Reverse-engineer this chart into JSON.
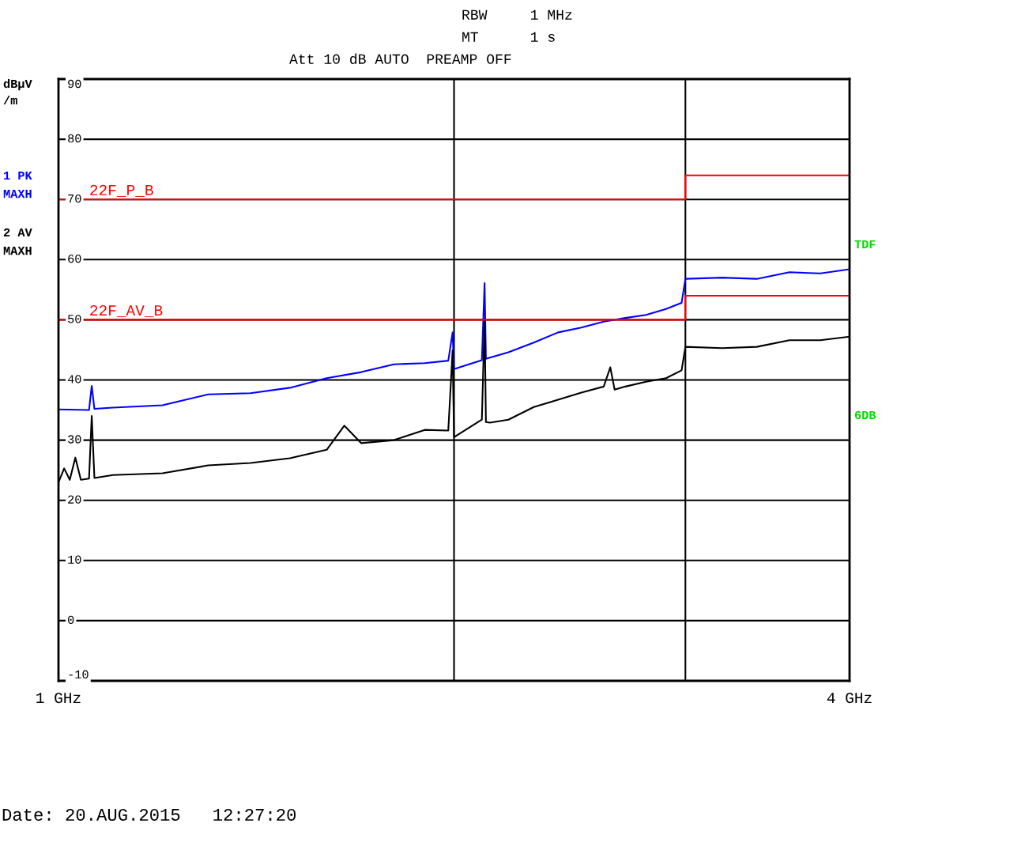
{
  "chart_data": {
    "type": "line",
    "ylabel": "dBµV\n/m",
    "log": "x",
    "grid": true,
    "legend": "left",
    "line_style": "solid",
    "marker": "none",
    "xlim": [
      1,
      4
    ],
    "xticks": [
      {
        "value": 1,
        "label": "1 GHz"
      },
      {
        "value": 2,
        "label": null
      },
      {
        "value": 3,
        "label": null
      },
      {
        "value": 4,
        "label": "4 GHz"
      }
    ],
    "ylim": [
      -10,
      90
    ],
    "yticks": [
      -10,
      0,
      10,
      20,
      30,
      40,
      50,
      60,
      70,
      80,
      90
    ],
    "series": [
      {
        "name": "1 PK\nMAXH",
        "color": "#0000ff",
        "x": [
          1.0,
          1.055,
          1.06,
          1.065,
          1.1,
          1.2,
          1.3,
          1.4,
          1.5,
          1.6,
          1.7,
          1.8,
          1.9,
          1.98,
          1.995,
          2.0,
          2.1,
          2.11,
          2.115,
          2.13,
          2.2,
          2.3,
          2.4,
          2.5,
          2.6,
          2.7,
          2.8,
          2.9,
          2.98,
          3.0,
          3.2,
          3.4,
          3.6,
          3.8,
          4.0
        ],
        "values": [
          35.1,
          35.0,
          39.0,
          35.2,
          35.4,
          35.8,
          37.6,
          37.8,
          38.7,
          40.3,
          41.3,
          42.6,
          42.8,
          43.2,
          47.9,
          41.8,
          43.3,
          56.1,
          43.5,
          43.7,
          44.6,
          46.2,
          47.9,
          48.7,
          49.7,
          50.3,
          50.8,
          51.8,
          52.8,
          56.8,
          57.0,
          56.8,
          57.9,
          57.7,
          58.4
        ]
      },
      {
        "name": "2 AV\nMAXH",
        "color": "#000000",
        "x": [
          1.0,
          1.01,
          1.02,
          1.03,
          1.04,
          1.055,
          1.06,
          1.065,
          1.1,
          1.2,
          1.3,
          1.4,
          1.5,
          1.6,
          1.65,
          1.7,
          1.8,
          1.9,
          1.98,
          1.995,
          2.0,
          2.1,
          2.11,
          2.115,
          2.13,
          2.2,
          2.3,
          2.4,
          2.5,
          2.6,
          2.63,
          2.65,
          2.7,
          2.8,
          2.9,
          2.98,
          3.0,
          3.2,
          3.4,
          3.6,
          3.8,
          4.0
        ],
        "values": [
          23.0,
          25.3,
          23.4,
          27.1,
          23.4,
          23.6,
          34.0,
          23.7,
          24.2,
          24.5,
          25.8,
          26.2,
          27.0,
          28.4,
          32.4,
          29.5,
          30.0,
          31.7,
          31.6,
          44.9,
          30.5,
          33.4,
          50.1,
          33.0,
          32.9,
          33.4,
          35.5,
          36.7,
          37.9,
          38.9,
          42.1,
          38.4,
          38.9,
          39.7,
          40.3,
          41.6,
          45.5,
          45.3,
          45.5,
          46.6,
          46.6,
          47.2
        ]
      },
      {
        "name": "22F_P_B",
        "type": "step",
        "color": "#ff0000",
        "x": [
          1,
          3,
          4
        ],
        "values": [
          70,
          74,
          74
        ]
      },
      {
        "name": "22F_AV_B",
        "type": "step",
        "color": "#ff0000",
        "x": [
          1,
          3,
          4
        ],
        "values": [
          50,
          54,
          54
        ]
      }
    ],
    "annotations": [
      "RBW     1 MHz",
      "MT      1 s",
      "Att 10 dB AUTO  PREAMP OFF",
      "TDF",
      "6DB",
      "Date: 20.AUG.2015   12:27:20"
    ]
  }
}
